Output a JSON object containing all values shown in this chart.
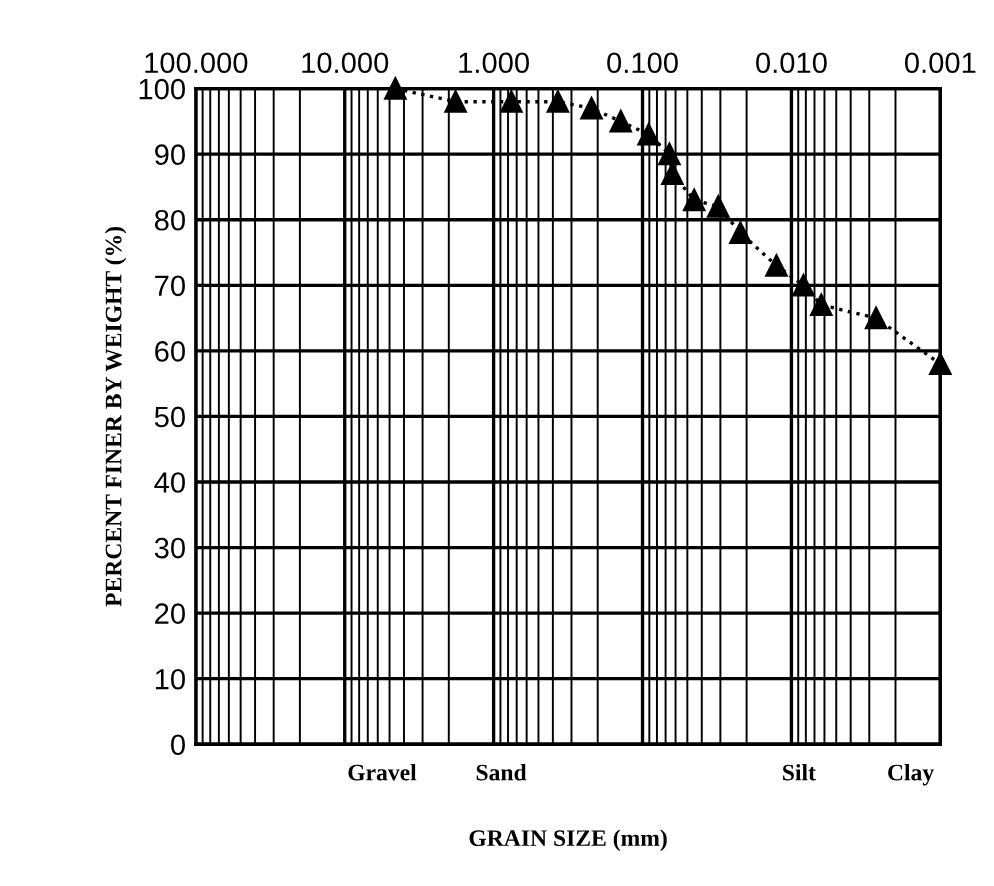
{
  "chart_data": {
    "type": "line",
    "xlabel": "GRAIN SIZE (mm)",
    "ylabel": "PERCENT FINER BY WEIGHT (%)",
    "x": [
      4.57,
      1.8,
      0.76,
      0.37,
      0.22,
      0.14,
      0.091,
      0.066,
      0.063,
      0.045,
      0.031,
      0.022,
      0.0126,
      0.0083,
      0.0063,
      0.0027,
      0.001
    ],
    "values": [
      100,
      98,
      98,
      98,
      97,
      95,
      93,
      90,
      87,
      83,
      82,
      78,
      73,
      70,
      67,
      65,
      58
    ],
    "color": "#000000",
    "marker": "triangle",
    "line_style": "dotted",
    "log": "x",
    "xlim": [
      100,
      0.001
    ],
    "xticks": [
      {
        "value": 100,
        "label": "100.000"
      },
      {
        "value": 10,
        "label": "10.000"
      },
      {
        "value": 1,
        "label": "1.000"
      },
      {
        "value": 0.1,
        "label": "0.100"
      },
      {
        "value": 0.01,
        "label": "0.010"
      },
      {
        "value": 0.001,
        "label": "0.001"
      }
    ],
    "ylim": [
      0,
      100
    ],
    "yticks": [
      0,
      10,
      20,
      30,
      40,
      50,
      60,
      70,
      80,
      90,
      100
    ],
    "grid": true,
    "annotations": [
      "Gravel",
      "Sand",
      "Silt",
      "Clay"
    ]
  }
}
